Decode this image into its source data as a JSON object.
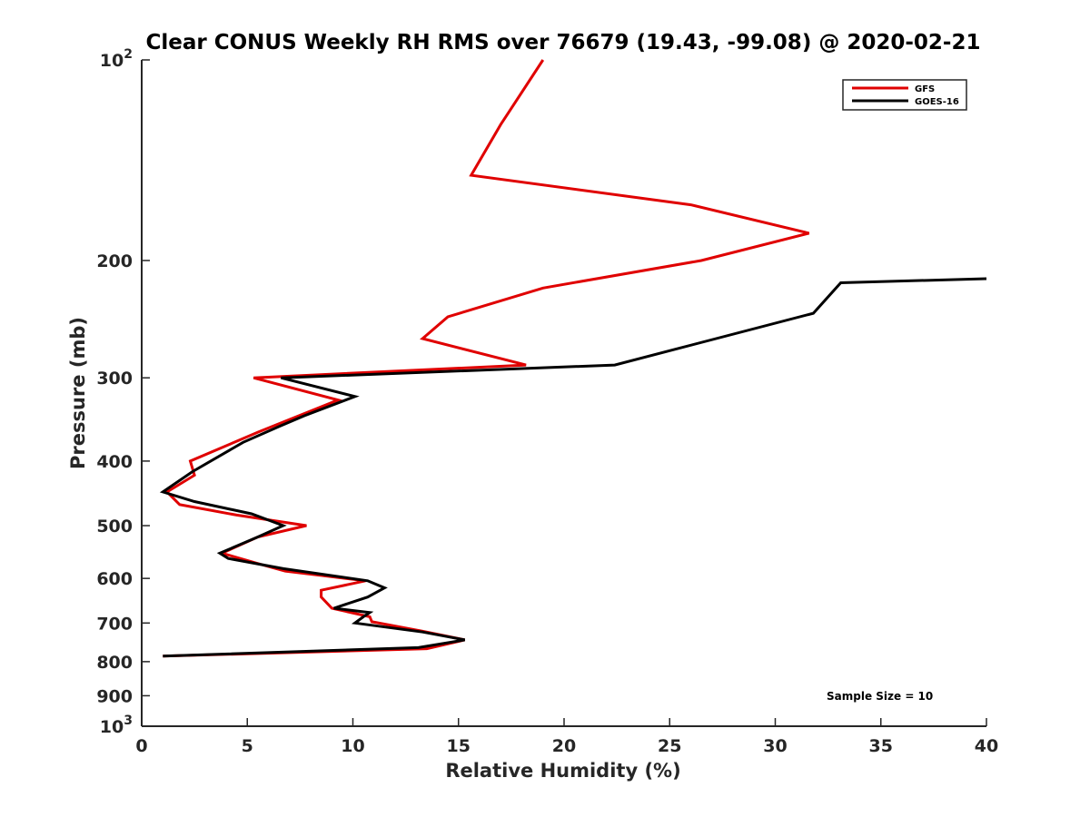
{
  "chart_data": {
    "type": "line",
    "title": "Clear CONUS Weekly RH RMS over 76679 (19.43, -99.08) @ 2020-02-21",
    "xlabel": "Relative Humidity (%)",
    "ylabel": "Pressure (mb)",
    "xlim": [
      0,
      40
    ],
    "ylim": [
      100,
      1000
    ],
    "y_scale": "log",
    "y_reversed": true,
    "x_ticks": [
      0,
      5,
      10,
      15,
      20,
      25,
      30,
      35,
      40
    ],
    "y_ticks": [
      {
        "value": 100,
        "base": "10",
        "exp": "2"
      },
      {
        "value": 200,
        "label": "200"
      },
      {
        "value": 300,
        "label": "300"
      },
      {
        "value": 400,
        "label": "400"
      },
      {
        "value": 500,
        "label": "500"
      },
      {
        "value": 600,
        "label": "600"
      },
      {
        "value": 700,
        "label": "700"
      },
      {
        "value": 800,
        "label": "800"
      },
      {
        "value": 900,
        "label": "900"
      },
      {
        "value": 1000,
        "base": "10",
        "exp": "3"
      }
    ],
    "grid": false,
    "legend_position": "top-right",
    "annotation": "Sample Size = 10",
    "series": [
      {
        "name": "GFS",
        "color": "#e00000",
        "points": [
          [
            19.0,
            100
          ],
          [
            17.0,
            125
          ],
          [
            15.6,
            149
          ],
          [
            26.0,
            165
          ],
          [
            31.6,
            182
          ],
          [
            26.5,
            200
          ],
          [
            19.0,
            220
          ],
          [
            14.5,
            243
          ],
          [
            13.3,
            262
          ],
          [
            18.2,
            287
          ],
          [
            5.3,
            300
          ],
          [
            9.3,
            324
          ],
          [
            5.5,
            362
          ],
          [
            2.3,
            400
          ],
          [
            2.5,
            420
          ],
          [
            1.2,
            445
          ],
          [
            1.8,
            465
          ],
          [
            4.5,
            482
          ],
          [
            7.8,
            500
          ],
          [
            5.5,
            520
          ],
          [
            3.8,
            550
          ],
          [
            5.5,
            570
          ],
          [
            6.8,
            585
          ],
          [
            10.6,
            605
          ],
          [
            8.5,
            625
          ],
          [
            8.5,
            640
          ],
          [
            9.0,
            665
          ],
          [
            10.8,
            685
          ],
          [
            10.9,
            697
          ],
          [
            13.3,
            720
          ],
          [
            15.3,
            742
          ],
          [
            13.5,
            765
          ],
          [
            1.0,
            785
          ]
        ]
      },
      {
        "name": "GOES-16",
        "color": "#000000",
        "points": [
          [
            40.0,
            213
          ],
          [
            33.1,
            216
          ],
          [
            31.8,
            240
          ],
          [
            22.4,
            287
          ],
          [
            6.6,
            300
          ],
          [
            10.1,
            320
          ],
          [
            7.7,
            342
          ],
          [
            6.5,
            355
          ],
          [
            4.8,
            375
          ],
          [
            2.4,
            415
          ],
          [
            1.0,
            445
          ],
          [
            2.5,
            460
          ],
          [
            5.2,
            480
          ],
          [
            6.7,
            500
          ],
          [
            5.5,
            520
          ],
          [
            3.7,
            550
          ],
          [
            4.1,
            560
          ],
          [
            6.7,
            580
          ],
          [
            10.7,
            605
          ],
          [
            11.5,
            620
          ],
          [
            10.7,
            640
          ],
          [
            9.1,
            665
          ],
          [
            10.8,
            675
          ],
          [
            10.5,
            685
          ],
          [
            10.1,
            700
          ],
          [
            13.3,
            722
          ],
          [
            15.3,
            742
          ],
          [
            13.1,
            762
          ],
          [
            1.0,
            785
          ]
        ]
      }
    ]
  }
}
